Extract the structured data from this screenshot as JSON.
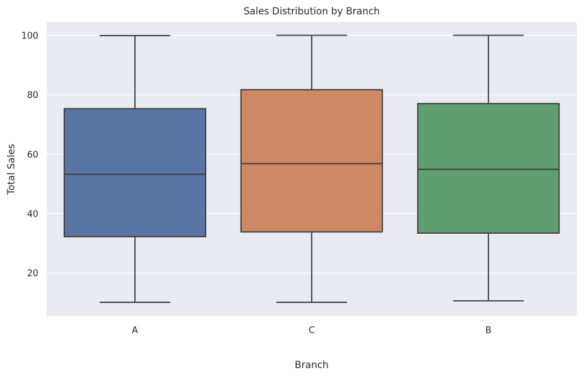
{
  "chart_data": {
    "type": "box",
    "title": "Sales Distribution by Branch",
    "xlabel": "Branch",
    "ylabel": "Total Sales",
    "ylim": [
      5.5,
      104.5
    ],
    "yticks": [
      20,
      40,
      60,
      80,
      100
    ],
    "grid": true,
    "categories": [
      "A",
      "C",
      "B"
    ],
    "boxes": [
      {
        "category": "A",
        "whisker_low": 10.1,
        "q1": 32.2,
        "median": 53.2,
        "q3": 75.3,
        "whisker_high": 99.9,
        "color": "#5975a4"
      },
      {
        "category": "C",
        "whisker_low": 10.1,
        "q1": 33.8,
        "median": 56.8,
        "q3": 81.7,
        "whisker_high": 100.0,
        "color": "#cc8963"
      },
      {
        "category": "B",
        "whisker_low": 10.6,
        "q1": 33.4,
        "median": 54.9,
        "q3": 77.0,
        "whisker_high": 100.0,
        "color": "#5f9e6e"
      }
    ]
  },
  "colors": {
    "plot_background": "#eaeaf2",
    "gridline": "#ffffff",
    "box_edge": "#3f3f3f"
  }
}
